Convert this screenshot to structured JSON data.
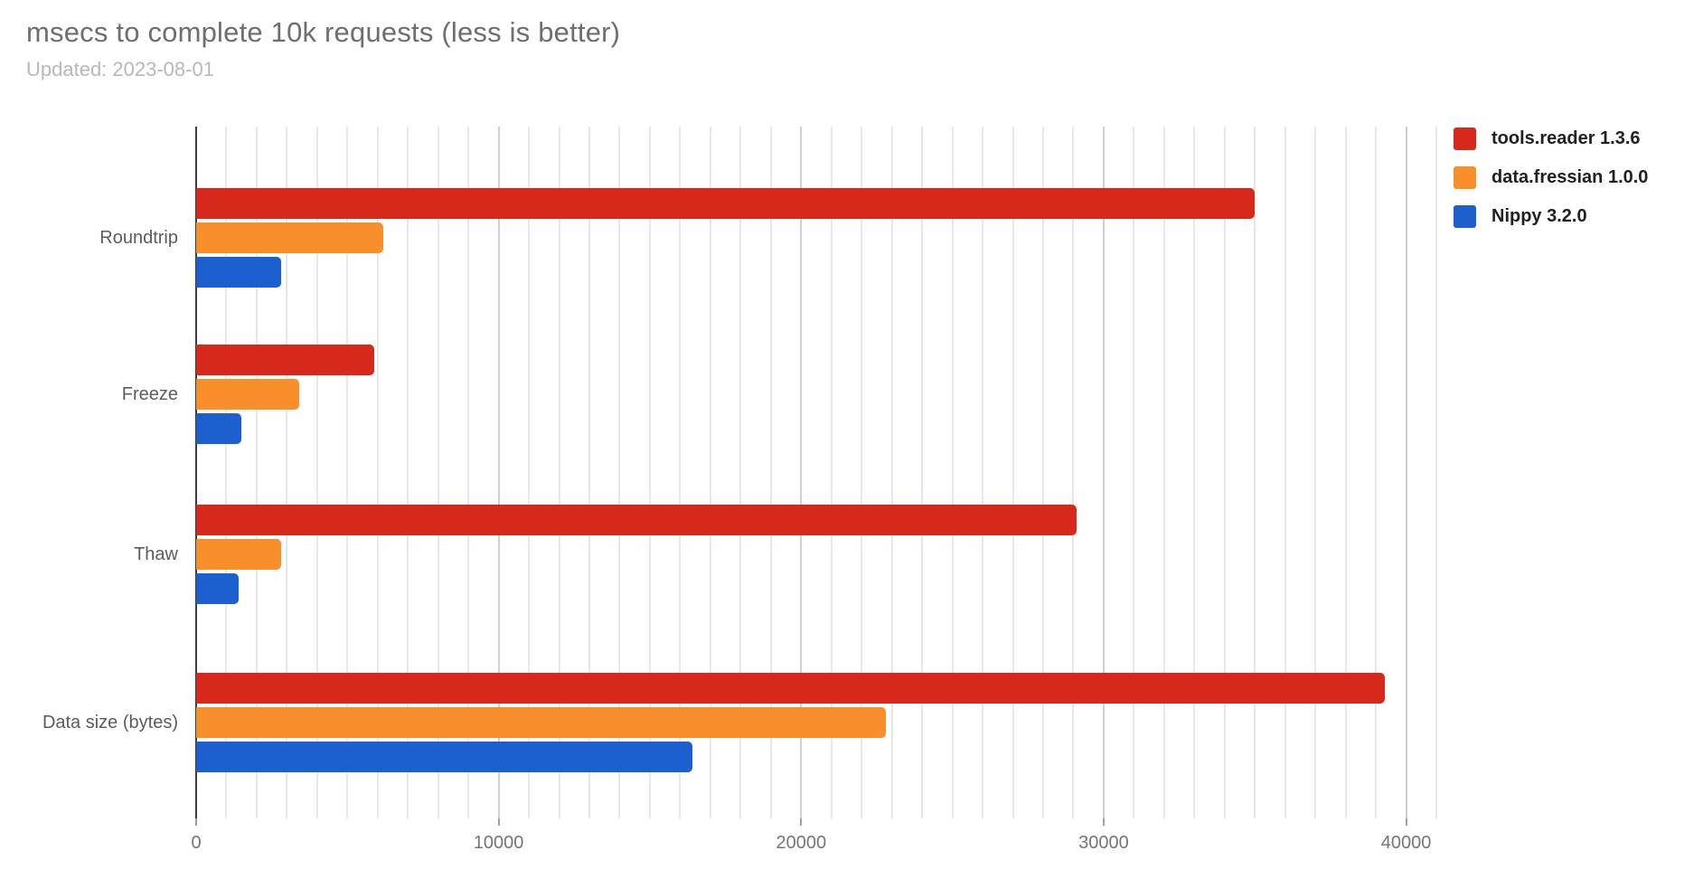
{
  "header": {
    "title": "msecs to complete 10k requests (less is better)",
    "subtitle": "Updated: 2023-08-01"
  },
  "colors": {
    "series_red": "#D7281C",
    "series_orange": "#F98F2B",
    "series_blue": "#1C5FCE",
    "gridline_minor": "#e8e8e8",
    "gridline_major": "#cfcfcf",
    "axis_line": "#3c3c3c",
    "title_text": "#6e6e6e",
    "subtitle_text": "#b8b8b8",
    "tick_text": "#757575",
    "category_text": "#5c5c5c",
    "legend_text": "#212121"
  },
  "chart_data": {
    "type": "bar",
    "orientation": "horizontal",
    "title": "msecs to complete 10k requests (less is better)",
    "subtitle": "Updated: 2023-08-01",
    "categories": [
      "Roundtrip",
      "Freeze",
      "Thaw",
      "Data size (bytes)"
    ],
    "series": [
      {
        "name": "tools.reader 1.3.6",
        "color": "#D7281C",
        "values": [
          35000,
          5900,
          29100,
          39300
        ]
      },
      {
        "name": "data.fressian 1.0.0",
        "color": "#F98F2B",
        "values": [
          6200,
          3400,
          2800,
          22800
        ]
      },
      {
        "name": "Nippy 3.2.0",
        "color": "#1C5FCE",
        "values": [
          2800,
          1500,
          1400,
          16400
        ]
      }
    ],
    "xaxis": {
      "min": 0,
      "max": 41000,
      "tick_interval": 10000,
      "minor_interval": 1000,
      "ticks": [
        0,
        10000,
        20000,
        30000,
        40000
      ],
      "tick_labels": [
        "0",
        "10000",
        "20000",
        "30000",
        "40000"
      ]
    },
    "yaxis": {
      "label": ""
    },
    "legend_position": "right",
    "grid": true,
    "unit": "msecs"
  }
}
